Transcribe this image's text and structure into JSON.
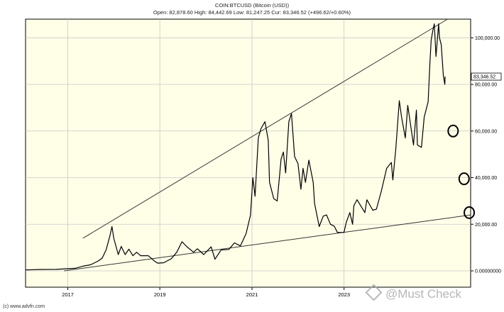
{
  "header": {
    "title": "COIN:BTCUSD (Bitcoin (USD))",
    "ohlc": "Open: 82,878.60 High: 84,442.69 Low: 81,247.25 Cur: 83,346.52 (+496.62/+0.60%)"
  },
  "footer": {
    "copyright": "(c) www.advfn.com"
  },
  "watermark": {
    "text": "@Must Check"
  },
  "colors": {
    "plot_bg": "#FFFFE8",
    "grid": "#C8C8C8",
    "line": "#000000",
    "frame": "#000000"
  },
  "chart_data": {
    "type": "line",
    "title": "COIN:BTCUSD (Bitcoin (USD))",
    "x_ticks": [
      "2017",
      "2019",
      "2021",
      "2023"
    ],
    "y_ticks": [
      {
        "value": 0,
        "label": "0.00000000"
      },
      {
        "value": 20000,
        "label": "20,000.00"
      },
      {
        "value": 40000,
        "label": "40,000.00"
      },
      {
        "value": 60000,
        "label": "60,000.00"
      },
      {
        "value": 80000,
        "label": "80,000.00"
      },
      {
        "value": 100000,
        "label": "100,000.00"
      }
    ],
    "ylim": [
      -7000,
      108000
    ],
    "xlim": [
      "2016-02-01",
      "2025-10-01"
    ],
    "grid": true,
    "current_label": "83,346.52",
    "current_value": 83346.52,
    "series": [
      {
        "points": [
          [
            "2016-02-01",
            400
          ],
          [
            "2016-06-01",
            600
          ],
          [
            "2016-10-01",
            650
          ],
          [
            "2017-01-01",
            950
          ],
          [
            "2017-03-01",
            1100
          ],
          [
            "2017-05-01",
            2000
          ],
          [
            "2017-07-01",
            2600
          ],
          [
            "2017-09-01",
            4300
          ],
          [
            "2017-10-01",
            5500
          ],
          [
            "2017-11-01",
            9000
          ],
          [
            "2017-12-01",
            15000
          ],
          [
            "2017-12-17",
            19000
          ],
          [
            "2018-01-01",
            14000
          ],
          [
            "2018-02-05",
            7000
          ],
          [
            "2018-03-01",
            10500
          ],
          [
            "2018-04-01",
            7000
          ],
          [
            "2018-05-01",
            9300
          ],
          [
            "2018-06-01",
            6500
          ],
          [
            "2018-07-01",
            8000
          ],
          [
            "2018-08-01",
            6500
          ],
          [
            "2018-10-01",
            6500
          ],
          [
            "2018-11-20",
            4200
          ],
          [
            "2018-12-15",
            3300
          ],
          [
            "2019-02-01",
            3500
          ],
          [
            "2019-04-01",
            5200
          ],
          [
            "2019-05-15",
            8000
          ],
          [
            "2019-06-26",
            12500
          ],
          [
            "2019-08-01",
            10500
          ],
          [
            "2019-09-25",
            8000
          ],
          [
            "2019-10-26",
            9500
          ],
          [
            "2019-12-15",
            7000
          ],
          [
            "2020-02-12",
            10300
          ],
          [
            "2020-03-13",
            5000
          ],
          [
            "2020-05-01",
            9000
          ],
          [
            "2020-07-01",
            9200
          ],
          [
            "2020-08-15",
            12000
          ],
          [
            "2020-10-01",
            10700
          ],
          [
            "2020-11-15",
            16000
          ],
          [
            "2020-12-20",
            24000
          ],
          [
            "2021-01-08",
            40000
          ],
          [
            "2021-01-25",
            32000
          ],
          [
            "2021-02-20",
            57000
          ],
          [
            "2021-03-13",
            61000
          ],
          [
            "2021-04-14",
            64000
          ],
          [
            "2021-05-10",
            56000
          ],
          [
            "2021-05-20",
            38000
          ],
          [
            "2021-06-22",
            31000
          ],
          [
            "2021-07-20",
            30000
          ],
          [
            "2021-08-20",
            48000
          ],
          [
            "2021-09-07",
            51000
          ],
          [
            "2021-09-25",
            42000
          ],
          [
            "2021-10-20",
            64000
          ],
          [
            "2021-11-10",
            67500
          ],
          [
            "2021-12-05",
            49000
          ],
          [
            "2022-01-01",
            46000
          ],
          [
            "2022-01-24",
            35000
          ],
          [
            "2022-02-10",
            44000
          ],
          [
            "2022-03-01",
            38000
          ],
          [
            "2022-03-28",
            47500
          ],
          [
            "2022-05-01",
            38000
          ],
          [
            "2022-05-12",
            29000
          ],
          [
            "2022-06-18",
            19000
          ],
          [
            "2022-07-20",
            23500
          ],
          [
            "2022-08-15",
            24000
          ],
          [
            "2022-09-15",
            20000
          ],
          [
            "2022-10-15",
            19200
          ],
          [
            "2022-11-09",
            16500
          ],
          [
            "2022-12-31",
            16500
          ],
          [
            "2023-01-20",
            21000
          ],
          [
            "2023-02-16",
            25000
          ],
          [
            "2023-03-10",
            20000
          ],
          [
            "2023-03-20",
            28000
          ],
          [
            "2023-04-14",
            30500
          ],
          [
            "2023-06-15",
            25000
          ],
          [
            "2023-07-01",
            30500
          ],
          [
            "2023-08-17",
            26000
          ],
          [
            "2023-09-15",
            26500
          ],
          [
            "2023-10-25",
            34500
          ],
          [
            "2023-12-05",
            44000
          ],
          [
            "2024-01-11",
            46500
          ],
          [
            "2024-01-23",
            39000
          ],
          [
            "2024-02-15",
            52000
          ],
          [
            "2024-03-14",
            73000
          ],
          [
            "2024-04-01",
            66000
          ],
          [
            "2024-05-01",
            57000
          ],
          [
            "2024-05-20",
            71000
          ],
          [
            "2024-07-05",
            54000
          ],
          [
            "2024-07-28",
            69000
          ],
          [
            "2024-08-05",
            54000
          ],
          [
            "2024-09-06",
            53000
          ],
          [
            "2024-09-28",
            66000
          ],
          [
            "2024-10-29",
            72500
          ],
          [
            "2024-11-12",
            89000
          ],
          [
            "2024-11-22",
            99000
          ],
          [
            "2024-12-05",
            103000
          ],
          [
            "2024-12-17",
            106000
          ],
          [
            "2024-12-30",
            92000
          ],
          [
            "2025-01-20",
            106000
          ],
          [
            "2025-01-27",
            100000
          ],
          [
            "2025-02-10",
            97000
          ],
          [
            "2025-02-26",
            84000
          ],
          [
            "2025-03-10",
            80000
          ],
          [
            "2025-03-13",
            83346.52
          ]
        ]
      }
    ],
    "annotations": {
      "trendlines": [
        {
          "from": [
            "2017-05-01",
            14000
          ],
          "to": [
            "2025-04-01",
            108000
          ]
        },
        {
          "from": [
            "2016-12-01",
            0
          ],
          "to": [
            "2025-10-01",
            24000
          ]
        }
      ],
      "circles": [
        {
          "at": [
            "2025-05-15",
            60000
          ]
        },
        {
          "at": [
            "2025-08-10",
            39500
          ]
        },
        {
          "at": [
            "2025-09-20",
            25000
          ]
        }
      ]
    }
  }
}
